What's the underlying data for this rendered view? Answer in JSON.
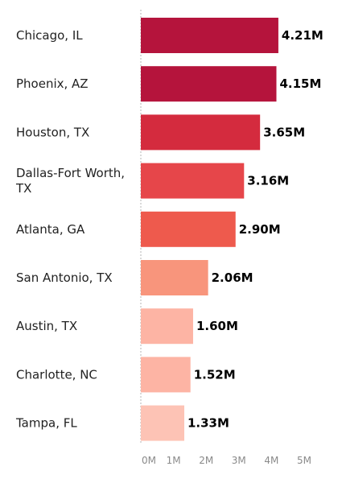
{
  "chart_data": {
    "type": "bar",
    "orientation": "horizontal",
    "title": "",
    "xlabel": "",
    "ylabel": "",
    "categories": [
      [
        "Chicago, IL"
      ],
      [
        "Phoenix, AZ"
      ],
      [
        "Houston, TX"
      ],
      [
        "Dallas-Fort Worth,",
        "TX"
      ],
      [
        "Atlanta, GA"
      ],
      [
        "San Antonio, TX"
      ],
      [
        "Austin, TX"
      ],
      [
        "Charlotte, NC"
      ],
      [
        "Tampa, FL"
      ]
    ],
    "values": [
      4.21,
      4.15,
      3.65,
      3.16,
      2.9,
      2.06,
      1.6,
      1.52,
      1.33
    ],
    "value_labels": [
      "4.21M",
      "4.15M",
      "3.65M",
      "3.16M",
      "2.90M",
      "2.06M",
      "1.60M",
      "1.52M",
      "1.33M"
    ],
    "bar_colors": [
      "#b5143c",
      "#b5143c",
      "#d42b3e",
      "#e6464a",
      "#ee5a4d",
      "#f8957c",
      "#fdb4a4",
      "#fdb4a4",
      "#fdc3b5"
    ],
    "xticks": [
      0,
      1,
      2,
      3,
      4,
      5
    ],
    "xtick_labels": [
      "0M",
      "1M",
      "2M",
      "3M",
      "4M",
      "5M"
    ],
    "xlim": [
      0,
      5
    ],
    "grid": false,
    "axis_line": "dashed"
  }
}
